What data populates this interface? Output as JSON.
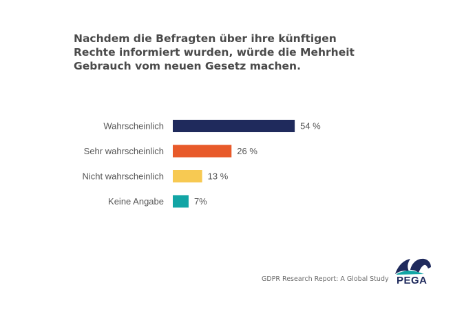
{
  "title": "Nachdem die Befragten über ihre künftigen Rechte informiert wurden, würde die Mehrheit Gebrauch vom neuen Gesetz machen.",
  "footer": "GDPR Research Report: A Global Study",
  "logo": "PEGA",
  "chart_data": {
    "type": "bar",
    "orientation": "horizontal",
    "categories": [
      "Wahrscheinlich",
      "Sehr wahrscheinlich",
      "Nicht wahrscheinlich",
      "Keine Angabe"
    ],
    "values": [
      54,
      26,
      13,
      7
    ],
    "data_labels": [
      "54 %",
      "26 %",
      "13 %",
      "7%"
    ],
    "colors": [
      "#1f2a5c",
      "#e85a2a",
      "#f7c952",
      "#12a5a5"
    ],
    "unit": "%",
    "grid": false,
    "legend": "none"
  }
}
